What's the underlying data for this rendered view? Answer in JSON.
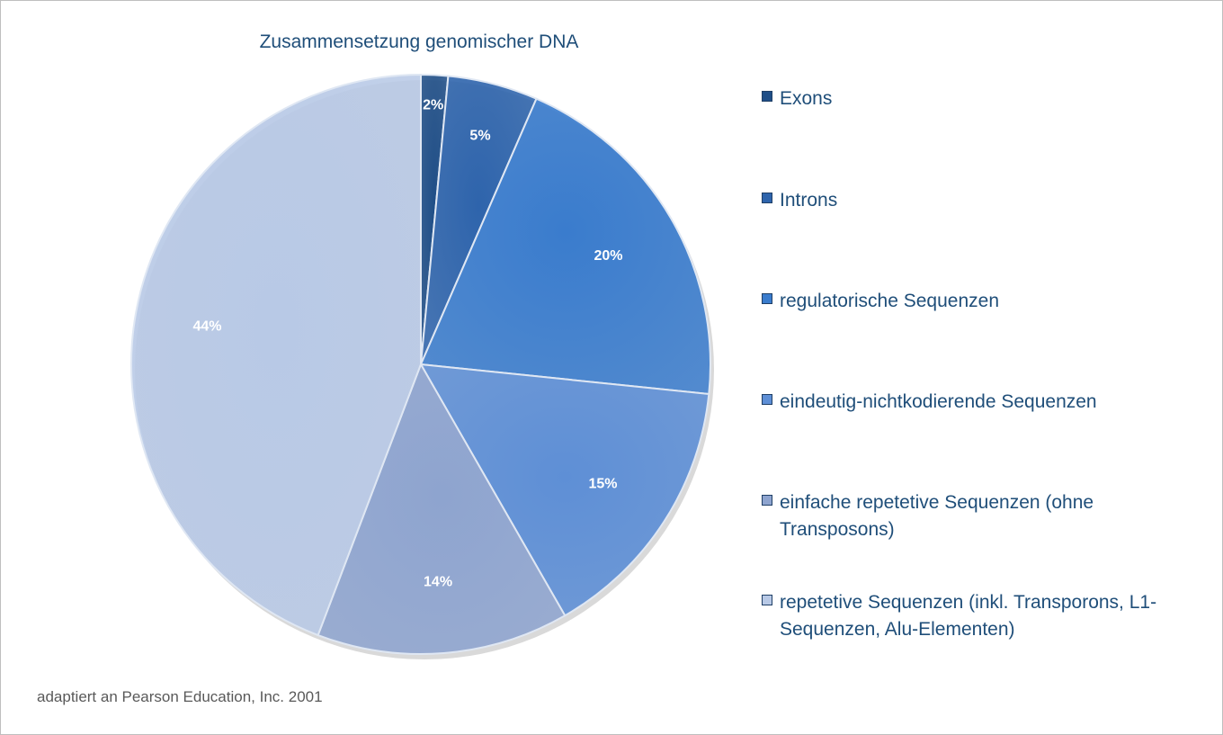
{
  "chart_data": {
    "type": "pie",
    "title": "Zusammensetzung genomischer DNA",
    "categories": [
      "Exons",
      "Introns",
      "regulatorische Sequenzen",
      "eindeutig-nichtkodierende Sequenzen",
      "einfache repetetive Sequenzen (ohne Transposons)",
      "repetetive Sequenzen (inkl. Transporons, L1-Sequenzen, Alu-Elementen)"
    ],
    "values": [
      1.5,
      5,
      20,
      15,
      14,
      44
    ],
    "data_labels": [
      "2%",
      "5%",
      "20%",
      "15%",
      "14%",
      "44%"
    ],
    "colors": [
      "#1f4e87",
      "#2e64ac",
      "#3a7ccd",
      "#5e8fd6",
      "#8ea4cf",
      "#b8c9e6"
    ],
    "legend_position": "right",
    "source": "adaptiert an Pearson Education, Inc. 2001"
  }
}
